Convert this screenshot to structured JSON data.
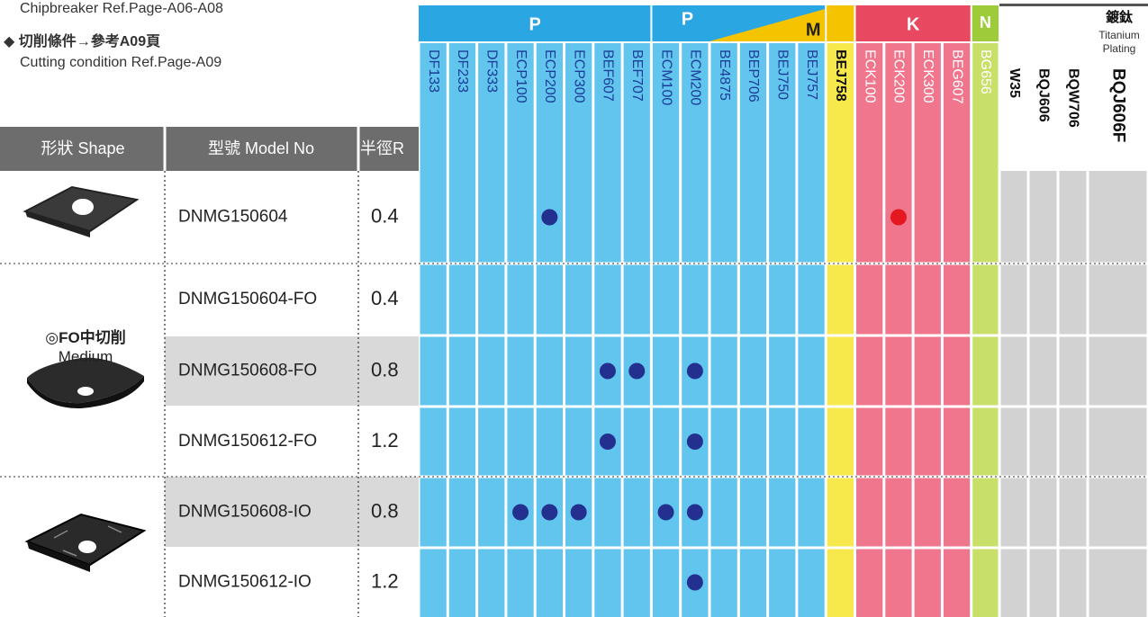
{
  "notes": [
    "Chipbreaker Ref.Page-A06-A08",
    "◆ 切削條件→參考A09頁",
    "Cutting condition Ref.Page-A09"
  ],
  "groups": {
    "p": "P",
    "pm": [
      "P",
      "M"
    ],
    "k": "K",
    "n": "N",
    "ti": {
      "label": "鍍鈦",
      "sublabel": [
        "Titanium",
        "Plating"
      ]
    }
  },
  "headers": {
    "shape": "形狀 Shape",
    "model": "型號 Model No",
    "radius": "半徑R"
  },
  "grades": [
    "DF133",
    "DF233",
    "DF333",
    "ECP100",
    "ECP200",
    "ECP300",
    "BEF607",
    "BEF707",
    "ECM100",
    "ECM200",
    "BE4875",
    "BEP706",
    "BEJ750",
    "BEJ757",
    "BEJ758",
    "ECK100",
    "ECK200",
    "ECK300",
    "BEG607",
    "BG656",
    "W35",
    "BQJ606",
    "BQW706",
    "BQJ606F"
  ],
  "sections": [
    {
      "rows": [
        {
          "model": "DNMG150604",
          "radius": 0.4,
          "dots": [
            {
              "grade": "ECP200",
              "color": "#23308f"
            },
            {
              "grade": "ECK200",
              "color": "#e3191f"
            }
          ]
        }
      ]
    },
    {
      "label": [
        "◎FO中切削",
        "Medium"
      ],
      "rows": [
        {
          "model": "DNMG150604-FO",
          "radius": 0.4,
          "dots": []
        },
        {
          "model": "DNMG150608-FO",
          "radius": 0.8,
          "dots": [
            {
              "grade": "BEF607",
              "color": "#23308f"
            },
            {
              "grade": "BEF707",
              "color": "#23308f"
            },
            {
              "grade": "ECM200",
              "color": "#23308f"
            }
          ]
        },
        {
          "model": "DNMG150612-FO",
          "radius": 1.2,
          "dots": [
            {
              "grade": "BEF607",
              "color": "#23308f"
            },
            {
              "grade": "ECM200",
              "color": "#23308f"
            }
          ]
        }
      ]
    },
    {
      "rows": [
        {
          "model": "DNMG150608-IO",
          "radius": 0.8,
          "dots": [
            {
              "grade": "ECP100",
              "color": "#23308f"
            },
            {
              "grade": "ECP200",
              "color": "#23308f"
            },
            {
              "grade": "ECP300",
              "color": "#23308f"
            },
            {
              "grade": "ECM100",
              "color": "#23308f"
            },
            {
              "grade": "ECM200",
              "color": "#23308f"
            }
          ]
        },
        {
          "model": "DNMG150612-IO",
          "radius": 1.2,
          "dots": [
            {
              "grade": "ECM200",
              "color": "#23308f"
            }
          ]
        }
      ]
    }
  ]
}
